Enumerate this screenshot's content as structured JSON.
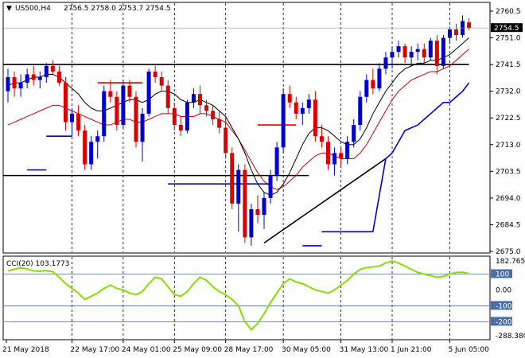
{
  "header": {
    "symbol": "US500,H4",
    "ohlc": "2756.5 2758.0 2753.7 2754.5"
  },
  "price_badge": "2754.5",
  "cci_header": "CCI(20) 103.1773",
  "colors": {
    "bull": "#0000cc",
    "bear": "#dd0000",
    "sma_fast": "#000000",
    "sma_slow": "#cc0000",
    "support_line": "#0000cc",
    "cci_line": "#88dd00",
    "level_line": "#4a6fa5",
    "badge": "#000000"
  },
  "chart_data": [
    {
      "type": "candlestick",
      "price_axis": {
        "ticks": [
          "2760.5",
          "2751.0",
          "2741.5",
          "2732.0",
          "2722.5",
          "2713.0",
          "2703.5",
          "2694.0",
          "2684.5",
          "2675.0"
        ],
        "min": 2675.0,
        "max": 2760.5
      },
      "time_axis": {
        "labels": [
          "21 May 2018",
          "22 May 17:00",
          "24 May 01:00",
          "25 May 09:00",
          "28 May 17:00",
          "30 May 05:00",
          "31 May 13:00",
          "1 Jun 21:00",
          "5 Jun 05:00"
        ],
        "label_index": [
          0,
          10,
          18,
          26,
          34,
          43,
          52,
          60,
          69
        ]
      },
      "candles": [
        [
          2732,
          2740,
          2728,
          2737
        ],
        [
          2737,
          2739,
          2730,
          2733
        ],
        [
          2733,
          2738,
          2730,
          2735
        ],
        [
          2735,
          2740,
          2733,
          2738
        ],
        [
          2738,
          2741,
          2734,
          2736
        ],
        [
          2736,
          2739,
          2733,
          2737
        ],
        [
          2737,
          2742,
          2735,
          2741
        ],
        [
          2741,
          2743,
          2738,
          2739
        ],
        [
          2739,
          2741,
          2734,
          2735
        ],
        [
          2735,
          2737,
          2718,
          2721
        ],
        [
          2721,
          2726,
          2716,
          2724
        ],
        [
          2724,
          2727,
          2716,
          2718
        ],
        [
          2718,
          2720,
          2704,
          2706
        ],
        [
          2706,
          2716,
          2704,
          2714
        ],
        [
          2714,
          2718,
          2708,
          2716
        ],
        [
          2716,
          2734,
          2714,
          2732
        ],
        [
          2732,
          2736,
          2728,
          2730
        ],
        [
          2730,
          2732,
          2718,
          2720
        ],
        [
          2720,
          2736,
          2719,
          2734
        ],
        [
          2734,
          2736,
          2728,
          2730
        ],
        [
          2730,
          2732,
          2712,
          2714
        ],
        [
          2714,
          2726,
          2707,
          2724
        ],
        [
          2724,
          2740,
          2723,
          2739
        ],
        [
          2739,
          2741,
          2735,
          2737
        ],
        [
          2737,
          2739,
          2732,
          2734
        ],
        [
          2734,
          2736,
          2724,
          2726
        ],
        [
          2726,
          2728,
          2718,
          2720
        ],
        [
          2720,
          2723,
          2716,
          2718
        ],
        [
          2718,
          2729,
          2717,
          2728
        ],
        [
          2728,
          2733,
          2726,
          2731
        ],
        [
          2731,
          2734,
          2724,
          2727
        ],
        [
          2727,
          2729,
          2723,
          2725
        ],
        [
          2725,
          2727,
          2720,
          2722
        ],
        [
          2722,
          2725,
          2717,
          2719
        ],
        [
          2719,
          2723,
          2708,
          2710
        ],
        [
          2710,
          2712,
          2690,
          2692
        ],
        [
          2692,
          2706,
          2682,
          2704
        ],
        [
          2704,
          2706,
          2678,
          2680
        ],
        [
          2680,
          2692,
          2677,
          2690
        ],
        [
          2690,
          2695,
          2685,
          2688
        ],
        [
          2688,
          2696,
          2683,
          2694
        ],
        [
          2694,
          2704,
          2692,
          2702
        ],
        [
          2702,
          2714,
          2700,
          2712
        ],
        [
          2712,
          2733,
          2710,
          2731
        ],
        [
          2731,
          2734,
          2726,
          2728
        ],
        [
          2728,
          2730,
          2722,
          2724
        ],
        [
          2724,
          2728,
          2720,
          2726
        ],
        [
          2726,
          2731,
          2724,
          2729
        ],
        [
          2729,
          2732,
          2714,
          2716
        ],
        [
          2716,
          2720,
          2712,
          2714
        ],
        [
          2714,
          2716,
          2704,
          2706
        ],
        [
          2706,
          2712,
          2702,
          2710
        ],
        [
          2710,
          2712,
          2705,
          2708
        ],
        [
          2708,
          2716,
          2706,
          2714
        ],
        [
          2714,
          2722,
          2712,
          2720
        ],
        [
          2720,
          2732,
          2718,
          2730
        ],
        [
          2730,
          2738,
          2728,
          2736
        ],
        [
          2736,
          2740,
          2731,
          2733
        ],
        [
          2733,
          2742,
          2732,
          2740
        ],
        [
          2740,
          2746,
          2738,
          2744
        ],
        [
          2744,
          2748,
          2740,
          2746
        ],
        [
          2746,
          2750,
          2744,
          2748
        ],
        [
          2748,
          2749,
          2742,
          2744
        ],
        [
          2744,
          2748,
          2741,
          2746
        ],
        [
          2746,
          2749,
          2743,
          2747
        ],
        [
          2747,
          2749,
          2742,
          2744
        ],
        [
          2744,
          2751,
          2743,
          2750
        ],
        [
          2750,
          2752,
          2738,
          2741
        ],
        [
          2741,
          2752,
          2740,
          2751
        ],
        [
          2751,
          2755,
          2749,
          2754
        ],
        [
          2754,
          2756,
          2750,
          2752
        ],
        [
          2752,
          2759,
          2751,
          2757
        ],
        [
          2756.5,
          2758.0,
          2753.7,
          2754.5
        ]
      ],
      "indicators": {
        "sma_fast": [
          2734,
          2735,
          2735,
          2736,
          2737,
          2737,
          2738,
          2738,
          2737,
          2735,
          2733,
          2731,
          2728,
          2726,
          2725,
          2725,
          2726,
          2727,
          2728,
          2729,
          2729,
          2728,
          2729,
          2731,
          2732,
          2732,
          2731,
          2729,
          2728,
          2728,
          2729,
          2728,
          2727,
          2725,
          2723,
          2719,
          2715,
          2710,
          2704,
          2699,
          2696,
          2695,
          2696,
          2699,
          2703,
          2708,
          2713,
          2717,
          2719,
          2719,
          2718,
          2716,
          2714,
          2713,
          2713,
          2715,
          2719,
          2724,
          2728,
          2732,
          2735,
          2738,
          2740,
          2741,
          2742,
          2742,
          2743,
          2743,
          2744,
          2745,
          2747,
          2749,
          2751
        ],
        "sma_slow": [
          2720,
          2721,
          2722,
          2723,
          2724,
          2725,
          2726,
          2727,
          2727,
          2726,
          2725,
          2724,
          2723,
          2722,
          2721,
          2720,
          2720,
          2721,
          2722,
          2722,
          2721,
          2721,
          2722,
          2723,
          2724,
          2724,
          2724,
          2723,
          2723,
          2723,
          2724,
          2724,
          2723,
          2722,
          2721,
          2718,
          2715,
          2711,
          2707,
          2703,
          2700,
          2698,
          2697,
          2698,
          2700,
          2702,
          2705,
          2707,
          2709,
          2710,
          2710,
          2709,
          2708,
          2708,
          2708,
          2710,
          2713,
          2717,
          2721,
          2725,
          2729,
          2732,
          2734,
          2736,
          2737,
          2738,
          2739,
          2739,
          2740,
          2741,
          2743,
          2745,
          2747
        ],
        "support_step": [
          {
            "from": 3,
            "to": 6,
            "y": 2704
          },
          {
            "from": 6,
            "to": 10,
            "y": 2716
          },
          {
            "from": 25,
            "to": 41,
            "y": 2699
          },
          {
            "from": 46,
            "to": 49,
            "y": 2677
          },
          {
            "from": 49,
            "to": 57,
            "y": 2682
          }
        ],
        "support_curve": [
          [
            57,
            2682
          ],
          [
            58,
            2695
          ],
          [
            59,
            2708
          ],
          [
            60,
            2710
          ],
          [
            61,
            2714
          ],
          [
            62,
            2718
          ],
          [
            63,
            2719
          ],
          [
            64,
            2720
          ],
          [
            65,
            2722
          ],
          [
            66,
            2724
          ],
          [
            67,
            2726
          ],
          [
            68,
            2728
          ],
          [
            69,
            2728
          ],
          [
            70,
            2730
          ],
          [
            71,
            2732
          ],
          [
            72,
            2735
          ]
        ]
      },
      "drawn_levels": {
        "black_horizontal": [
          {
            "from": 0,
            "to": 72,
            "y": 2741.5
          },
          {
            "from": 0,
            "to": 47,
            "y": 2702
          }
        ],
        "red_horizontal": [
          {
            "from": 14,
            "to": 21,
            "y": 2735
          },
          {
            "from": 39,
            "to": 45,
            "y": 2720
          }
        ],
        "trendline": {
          "from": [
            40,
            2678
          ],
          "to": [
            59,
            2708
          ]
        }
      }
    },
    {
      "type": "line",
      "name": "CCI(20)",
      "y_ticks": [
        "182.7655",
        "100",
        "0.00",
        "-100",
        "-200",
        "-288.380"
      ],
      "levels": [
        100,
        -100,
        -200
      ],
      "ylim": [
        -288.38,
        182.7655
      ],
      "values": [
        120,
        130,
        140,
        132,
        120,
        118,
        122,
        115,
        80,
        40,
        10,
        -20,
        -60,
        -40,
        -20,
        10,
        30,
        10,
        0,
        -20,
        -30,
        -10,
        40,
        80,
        70,
        20,
        -30,
        -40,
        -10,
        40,
        80,
        60,
        20,
        -10,
        -30,
        -60,
        -100,
        -200,
        -250,
        -210,
        -150,
        -80,
        -20,
        40,
        70,
        50,
        40,
        20,
        0,
        -10,
        -20,
        0,
        30,
        60,
        100,
        130,
        140,
        145,
        150,
        170,
        182,
        170,
        150,
        130,
        110,
        100,
        90,
        80,
        85,
        100,
        110,
        112,
        103
      ]
    }
  ]
}
